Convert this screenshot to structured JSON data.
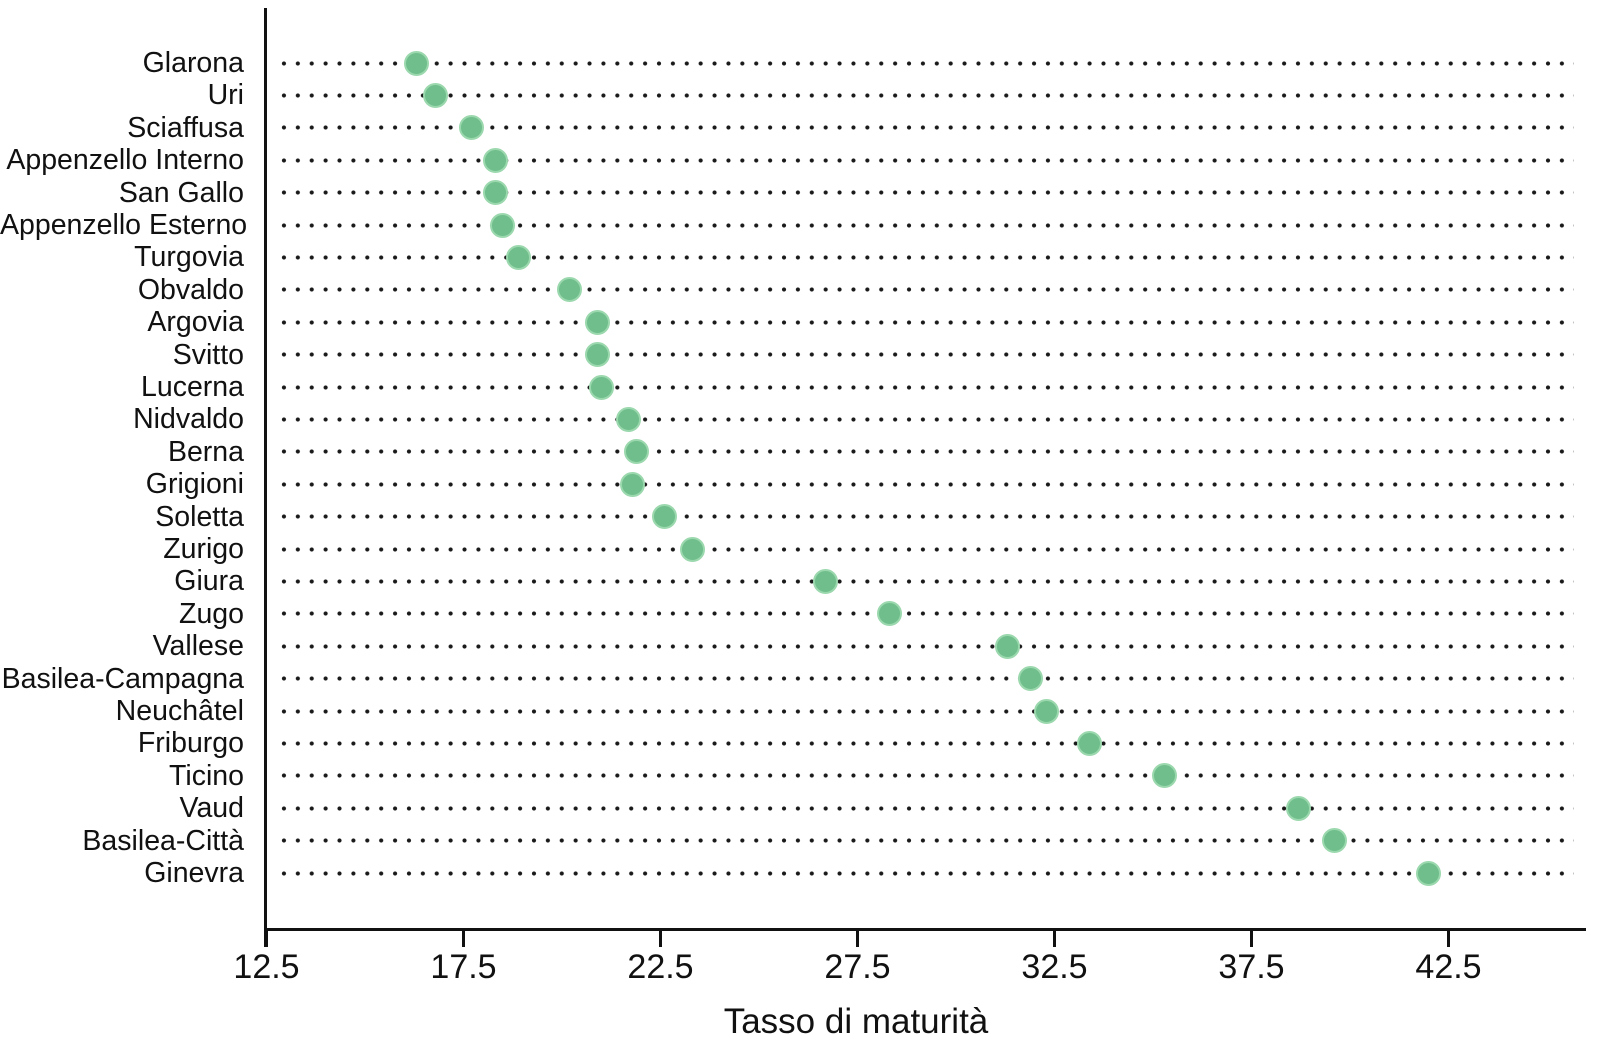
{
  "chart_data": {
    "type": "scatter",
    "variant": "horizontal-dot-plot",
    "title": "",
    "xlabel": "Tasso di maturità",
    "ylabel": "",
    "xlim": [
      12.5,
      46.0
    ],
    "xticks": [
      12.5,
      17.5,
      22.5,
      27.5,
      32.5,
      37.5,
      42.5
    ],
    "xtick_labels": [
      "12.5",
      "17.5",
      "22.5",
      "27.5",
      "32.5",
      "37.5",
      "42.5"
    ],
    "grid": "dotted horizontal leader line per category",
    "legend_position": "none",
    "categories": [
      "Glarona",
      "Uri",
      "Sciaffusa",
      "Appenzello Interno",
      "San Gallo",
      "Appenzello Esterno",
      "Turgovia",
      "Obvaldo",
      "Argovia",
      "Svitto",
      "Lucerna",
      "Nidvaldo",
      "Berna",
      "Grigioni",
      "Soletta",
      "Zurigo",
      "Giura",
      "Zugo",
      "Vallese",
      "Basilea-Campagna",
      "Neuchâtel",
      "Friburgo",
      "Ticino",
      "Vaud",
      "Basilea-Città",
      "Ginevra"
    ],
    "values": [
      16.3,
      16.8,
      17.7,
      18.3,
      18.3,
      18.5,
      18.9,
      20.2,
      20.9,
      20.9,
      21.0,
      21.7,
      21.9,
      21.8,
      22.6,
      23.3,
      26.7,
      28.3,
      31.3,
      31.9,
      32.3,
      33.4,
      35.3,
      38.7,
      39.6,
      42.0
    ]
  },
  "style": {
    "dot_fill": "#6fbe8c",
    "dot_edge": "#9bd8ad",
    "leader_dot_color": "#1a1a1a",
    "axis_color": "#111111",
    "text_color": "#111111",
    "background": "#ffffff"
  }
}
